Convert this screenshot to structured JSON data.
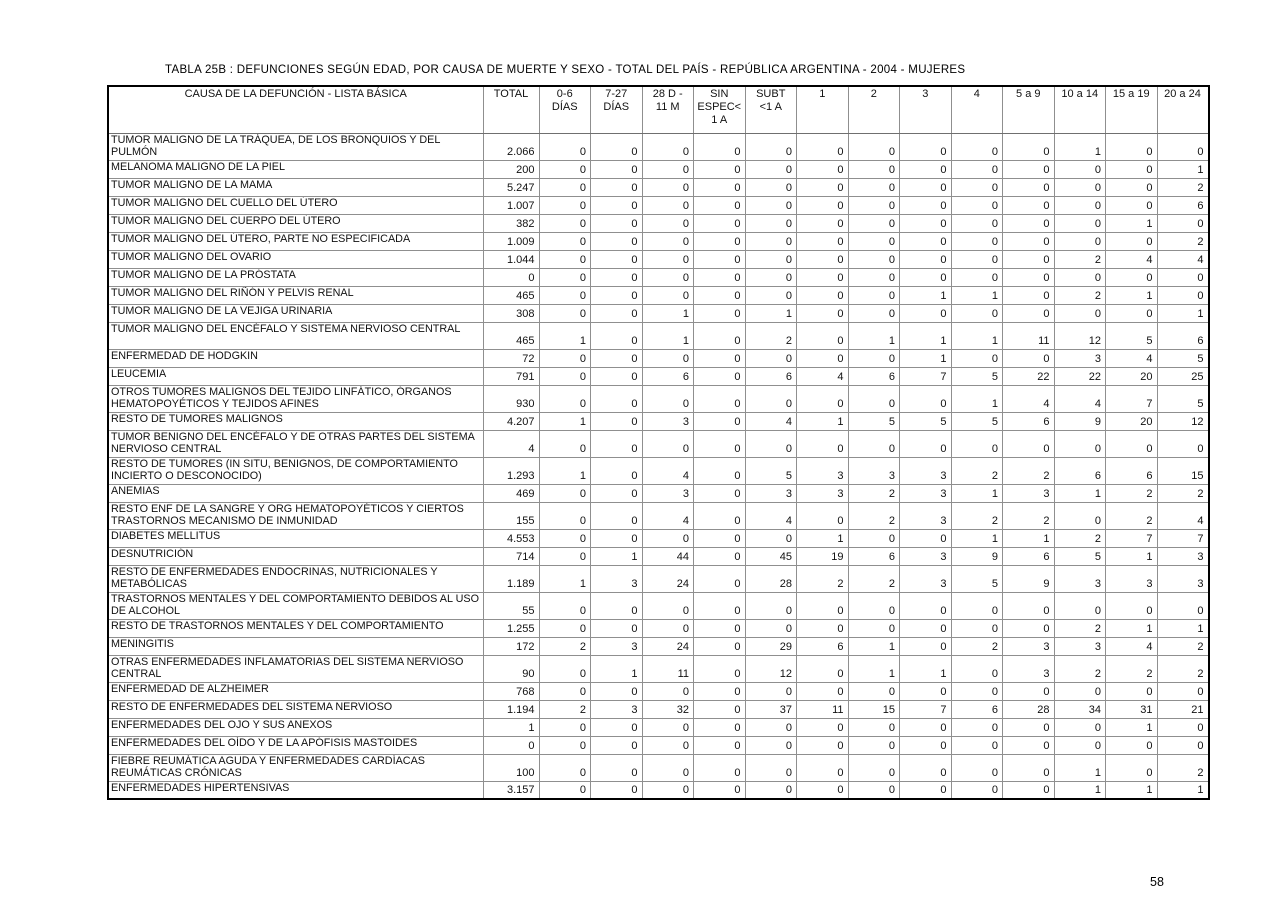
{
  "page": {
    "title": "TABLA 25B : DEFUNCIONES SEGÚN EDAD, POR CAUSA DE MUERTE Y SEXO - TOTAL DEL PAÍS - REPÚBLICA ARGENTINA - 2004 - MUJERES",
    "page_number": "58"
  },
  "table": {
    "columns": [
      "CAUSA DE LA DEFUNCIÓN - LISTA BÁSICA",
      "TOTAL",
      "0-6\nDÍAS",
      "7-27\nDÍAS",
      "28 D -\n11 M",
      "SIN\nESPEC<\n1 A",
      "SUBT\n<1 A",
      "1",
      "2",
      "3",
      "4",
      "5 a 9",
      "10 a 14",
      "15 a 19",
      "20 a 24"
    ],
    "rows": [
      {
        "cause": "TUMOR MALIGNO DE LA TRÁQUEA,  DE LOS BRONQUIOS Y DEL PULMÓN",
        "total": "2.066",
        "values": [
          "0",
          "0",
          "0",
          "0",
          "0",
          "0",
          "0",
          "0",
          "0",
          "0",
          "1",
          "0",
          "0"
        ],
        "two_line": true
      },
      {
        "cause": "MELANOMA MALIGNO DE LA PIEL",
        "total": "200",
        "values": [
          "0",
          "0",
          "0",
          "0",
          "0",
          "0",
          "0",
          "0",
          "0",
          "0",
          "0",
          "0",
          "1"
        ],
        "two_line": false
      },
      {
        "cause": "TUMOR MALIGNO DE LA MAMA",
        "total": "5.247",
        "values": [
          "0",
          "0",
          "0",
          "0",
          "0",
          "0",
          "0",
          "0",
          "0",
          "0",
          "0",
          "0",
          "2"
        ],
        "two_line": false
      },
      {
        "cause": "TUMOR MALIGNO DEL CUELLO DEL ÚTERO",
        "total": "1.007",
        "values": [
          "0",
          "0",
          "0",
          "0",
          "0",
          "0",
          "0",
          "0",
          "0",
          "0",
          "0",
          "0",
          "6"
        ],
        "two_line": false
      },
      {
        "cause": "TUMOR MALIGNO DEL CUERPO DEL ÚTERO",
        "total": "382",
        "values": [
          "0",
          "0",
          "0",
          "0",
          "0",
          "0",
          "0",
          "0",
          "0",
          "0",
          "0",
          "1",
          "0"
        ],
        "two_line": false
      },
      {
        "cause": "TUMOR MALIGNO DEL ÚTERO, PARTE NO ESPECIFICADA",
        "total": "1.009",
        "values": [
          "0",
          "0",
          "0",
          "0",
          "0",
          "0",
          "0",
          "0",
          "0",
          "0",
          "0",
          "0",
          "2"
        ],
        "two_line": false
      },
      {
        "cause": "TUMOR MALIGNO DEL OVARIO",
        "total": "1.044",
        "values": [
          "0",
          "0",
          "0",
          "0",
          "0",
          "0",
          "0",
          "0",
          "0",
          "0",
          "2",
          "4",
          "4"
        ],
        "two_line": false
      },
      {
        "cause": "TUMOR MALIGNO DE LA PRÓSTATA",
        "total": "0",
        "values": [
          "0",
          "0",
          "0",
          "0",
          "0",
          "0",
          "0",
          "0",
          "0",
          "0",
          "0",
          "0",
          "0"
        ],
        "two_line": false
      },
      {
        "cause": "TUMOR MALIGNO DEL RIÑÓN Y PELVIS RENAL",
        "total": "465",
        "values": [
          "0",
          "0",
          "0",
          "0",
          "0",
          "0",
          "0",
          "1",
          "1",
          "0",
          "2",
          "1",
          "0"
        ],
        "two_line": false
      },
      {
        "cause": "TUMOR MALIGNO DE LA VEJIGA URINARIA",
        "total": "308",
        "values": [
          "0",
          "0",
          "1",
          "0",
          "1",
          "0",
          "0",
          "0",
          "0",
          "0",
          "0",
          "0",
          "1"
        ],
        "two_line": false
      },
      {
        "cause": "TUMOR MALIGNO DEL ENCÉFALO Y SISTEMA NERVIOSO CENTRAL",
        "total": "465",
        "values": [
          "1",
          "0",
          "1",
          "0",
          "2",
          "0",
          "1",
          "1",
          "1",
          "11",
          "12",
          "5",
          "6"
        ],
        "two_line": true
      },
      {
        "cause": "ENFERMEDAD DE HODGKIN",
        "total": "72",
        "values": [
          "0",
          "0",
          "0",
          "0",
          "0",
          "0",
          "0",
          "1",
          "0",
          "0",
          "3",
          "4",
          "5"
        ],
        "two_line": false
      },
      {
        "cause": "LEUCEMIA",
        "total": "791",
        "values": [
          "0",
          "0",
          "6",
          "0",
          "6",
          "4",
          "6",
          "7",
          "5",
          "22",
          "22",
          "20",
          "25"
        ],
        "two_line": false
      },
      {
        "cause": "OTROS TUMORES MALIGNOS DEL TEJIDO LINFÁTICO, ÓRGANOS HEMATOPOYÉTICOS Y TEJIDOS AFINES",
        "total": "930",
        "values": [
          "0",
          "0",
          "0",
          "0",
          "0",
          "0",
          "0",
          "0",
          "1",
          "4",
          "4",
          "7",
          "5"
        ],
        "two_line": true
      },
      {
        "cause": "RESTO DE TUMORES MALIGNOS",
        "total": "4.207",
        "values": [
          "1",
          "0",
          "3",
          "0",
          "4",
          "1",
          "5",
          "5",
          "5",
          "6",
          "9",
          "20",
          "12"
        ],
        "two_line": false
      },
      {
        "cause": "TUMOR BENIGNO DEL ENCÉFALO Y DE OTRAS PARTES DEL SISTEMA NERVIOSO CENTRAL",
        "total": "4",
        "values": [
          "0",
          "0",
          "0",
          "0",
          "0",
          "0",
          "0",
          "0",
          "0",
          "0",
          "0",
          "0",
          "0"
        ],
        "two_line": true
      },
      {
        "cause": "RESTO DE TUMORES (IN SITU, BENIGNOS, DE COMPORTAMIENTO INCIERTO O DESCONOCIDO)",
        "total": "1.293",
        "values": [
          "1",
          "0",
          "4",
          "0",
          "5",
          "3",
          "3",
          "3",
          "2",
          "2",
          "6",
          "6",
          "15"
        ],
        "two_line": true
      },
      {
        "cause": "ANEMIAS",
        "total": "469",
        "values": [
          "0",
          "0",
          "3",
          "0",
          "3",
          "3",
          "2",
          "3",
          "1",
          "3",
          "1",
          "2",
          "2"
        ],
        "two_line": false
      },
      {
        "cause": "RESTO ENF DE LA SANGRE Y ORG HEMATOPOYÉTICOS Y CIERTOS TRASTORNOS MECANISMO DE  INMUNIDAD",
        "total": "155",
        "values": [
          "0",
          "0",
          "4",
          "0",
          "4",
          "0",
          "2",
          "3",
          "2",
          "2",
          "0",
          "2",
          "4"
        ],
        "two_line": true
      },
      {
        "cause": "DIABETES MELLITUS",
        "total": "4.553",
        "values": [
          "0",
          "0",
          "0",
          "0",
          "0",
          "1",
          "0",
          "0",
          "1",
          "1",
          "2",
          "7",
          "7"
        ],
        "two_line": false
      },
      {
        "cause": "DESNUTRICIÓN",
        "total": "714",
        "values": [
          "0",
          "1",
          "44",
          "0",
          "45",
          "19",
          "6",
          "3",
          "9",
          "6",
          "5",
          "1",
          "3"
        ],
        "two_line": false
      },
      {
        "cause": "RESTO DE ENFERMEDADES ENDOCRINAS, NUTRICIONALES Y METABÓLICAS",
        "total": "1.189",
        "values": [
          "1",
          "3",
          "24",
          "0",
          "28",
          "2",
          "2",
          "3",
          "5",
          "9",
          "3",
          "3",
          "3"
        ],
        "two_line": true
      },
      {
        "cause": "TRASTORNOS MENTALES Y DEL COMPORTAMIENTO DEBIDOS AL USO DE ALCOHOL",
        "total": "55",
        "values": [
          "0",
          "0",
          "0",
          "0",
          "0",
          "0",
          "0",
          "0",
          "0",
          "0",
          "0",
          "0",
          "0"
        ],
        "two_line": true
      },
      {
        "cause": "RESTO DE TRASTORNOS MENTALES Y DEL COMPORTAMIENTO",
        "total": "1.255",
        "values": [
          "0",
          "0",
          "0",
          "0",
          "0",
          "0",
          "0",
          "0",
          "0",
          "0",
          "2",
          "1",
          "1"
        ],
        "two_line": false
      },
      {
        "cause": "MENINGITIS",
        "total": "172",
        "values": [
          "2",
          "3",
          "24",
          "0",
          "29",
          "6",
          "1",
          "0",
          "2",
          "3",
          "3",
          "4",
          "2"
        ],
        "two_line": false
      },
      {
        "cause": "OTRAS ENFERMEDADES INFLAMATORIAS DEL SISTEMA NERVIOSO CENTRAL",
        "total": "90",
        "values": [
          "0",
          "1",
          "11",
          "0",
          "12",
          "0",
          "1",
          "1",
          "0",
          "3",
          "2",
          "2",
          "2"
        ],
        "two_line": true
      },
      {
        "cause": "ENFERMEDAD DE ALZHEIMER",
        "total": "768",
        "values": [
          "0",
          "0",
          "0",
          "0",
          "0",
          "0",
          "0",
          "0",
          "0",
          "0",
          "0",
          "0",
          "0"
        ],
        "two_line": false
      },
      {
        "cause": "RESTO DE ENFERMEDADES DEL SISTEMA NERVIOSO",
        "total": "1.194",
        "values": [
          "2",
          "3",
          "32",
          "0",
          "37",
          "11",
          "15",
          "7",
          "6",
          "28",
          "34",
          "31",
          "21"
        ],
        "two_line": false
      },
      {
        "cause": "ENFERMEDADES DEL OJO Y SUS ANEXOS",
        "total": "1",
        "values": [
          "0",
          "0",
          "0",
          "0",
          "0",
          "0",
          "0",
          "0",
          "0",
          "0",
          "0",
          "1",
          "0"
        ],
        "two_line": false
      },
      {
        "cause": "ENFERMEDADES DEL OÍDO Y DE LA APÓFISIS MASTOIDES",
        "total": "0",
        "values": [
          "0",
          "0",
          "0",
          "0",
          "0",
          "0",
          "0",
          "0",
          "0",
          "0",
          "0",
          "0",
          "0"
        ],
        "two_line": false
      },
      {
        "cause": "FIEBRE REUMÁTICA AGUDA Y ENFERMEDADES CARDÍACAS REUMÁTICAS CRÓNICAS",
        "total": "100",
        "values": [
          "0",
          "0",
          "0",
          "0",
          "0",
          "0",
          "0",
          "0",
          "0",
          "0",
          "1",
          "0",
          "2"
        ],
        "two_line": true
      },
      {
        "cause": "ENFERMEDADES HIPERTENSIVAS",
        "total": "3.157",
        "values": [
          "0",
          "0",
          "0",
          "0",
          "0",
          "0",
          "0",
          "0",
          "0",
          "0",
          "1",
          "1",
          "1"
        ],
        "two_line": false
      }
    ]
  }
}
